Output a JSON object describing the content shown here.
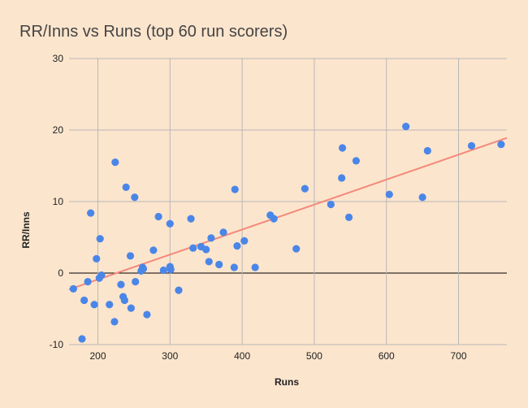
{
  "chart_data": {
    "type": "scatter",
    "title": "RR/Inns vs Runs (top 60 run scorers)",
    "xlabel": "Runs",
    "ylabel": "RR/Inns",
    "xlim": [
      160,
      767
    ],
    "ylim": [
      -10,
      30
    ],
    "x_ticks": [
      200,
      300,
      400,
      500,
      600,
      700
    ],
    "y_ticks": [
      -10,
      0,
      10,
      20,
      30
    ],
    "grid": true,
    "legend": "none",
    "colors": {
      "background": "#fce5cd",
      "points": "#4a86e8",
      "trendline": "#f4897a",
      "grid": "#b7b7b7",
      "zero_line": "#000000"
    },
    "trendline": {
      "type": "linear",
      "x": [
        160,
        767
      ],
      "y": [
        -2.3,
        18.9
      ]
    },
    "points": [
      [
        166,
        -2.2
      ],
      [
        178,
        -9.2
      ],
      [
        181,
        -3.8
      ],
      [
        186,
        -1.2
      ],
      [
        190,
        8.4
      ],
      [
        195,
        -4.4
      ],
      [
        198,
        2.0
      ],
      [
        202,
        -0.7
      ],
      [
        203,
        4.8
      ],
      [
        205,
        -0.3
      ],
      [
        216,
        -4.4
      ],
      [
        223,
        -6.8
      ],
      [
        224,
        15.5
      ],
      [
        232,
        -1.6
      ],
      [
        235,
        -3.3
      ],
      [
        237,
        -3.8
      ],
      [
        239,
        12.0
      ],
      [
        245,
        2.4
      ],
      [
        246,
        -4.9
      ],
      [
        251,
        10.6
      ],
      [
        252,
        -1.2
      ],
      [
        260,
        0.3
      ],
      [
        262,
        0.8
      ],
      [
        263,
        0.6
      ],
      [
        268,
        -5.8
      ],
      [
        277,
        3.2
      ],
      [
        284,
        7.9
      ],
      [
        291,
        0.4
      ],
      [
        300,
        6.9
      ],
      [
        300,
        0.9
      ],
      [
        301,
        0.5
      ],
      [
        312,
        -2.4
      ],
      [
        329,
        7.6
      ],
      [
        332,
        3.5
      ],
      [
        343,
        3.7
      ],
      [
        350,
        3.3
      ],
      [
        354,
        1.6
      ],
      [
        357,
        4.9
      ],
      [
        368,
        1.2
      ],
      [
        374,
        5.7
      ],
      [
        389,
        0.8
      ],
      [
        390,
        11.7
      ],
      [
        393,
        3.8
      ],
      [
        403,
        4.5
      ],
      [
        418,
        0.8
      ],
      [
        439,
        8.1
      ],
      [
        444,
        7.6
      ],
      [
        475,
        3.4
      ],
      [
        487,
        11.8
      ],
      [
        523,
        9.6
      ],
      [
        538,
        13.3
      ],
      [
        539,
        17.5
      ],
      [
        548,
        7.8
      ],
      [
        558,
        15.7
      ],
      [
        604,
        11.0
      ],
      [
        627,
        20.5
      ],
      [
        650,
        10.6
      ],
      [
        657,
        17.1
      ],
      [
        718,
        17.8
      ],
      [
        759,
        18.0
      ]
    ]
  }
}
